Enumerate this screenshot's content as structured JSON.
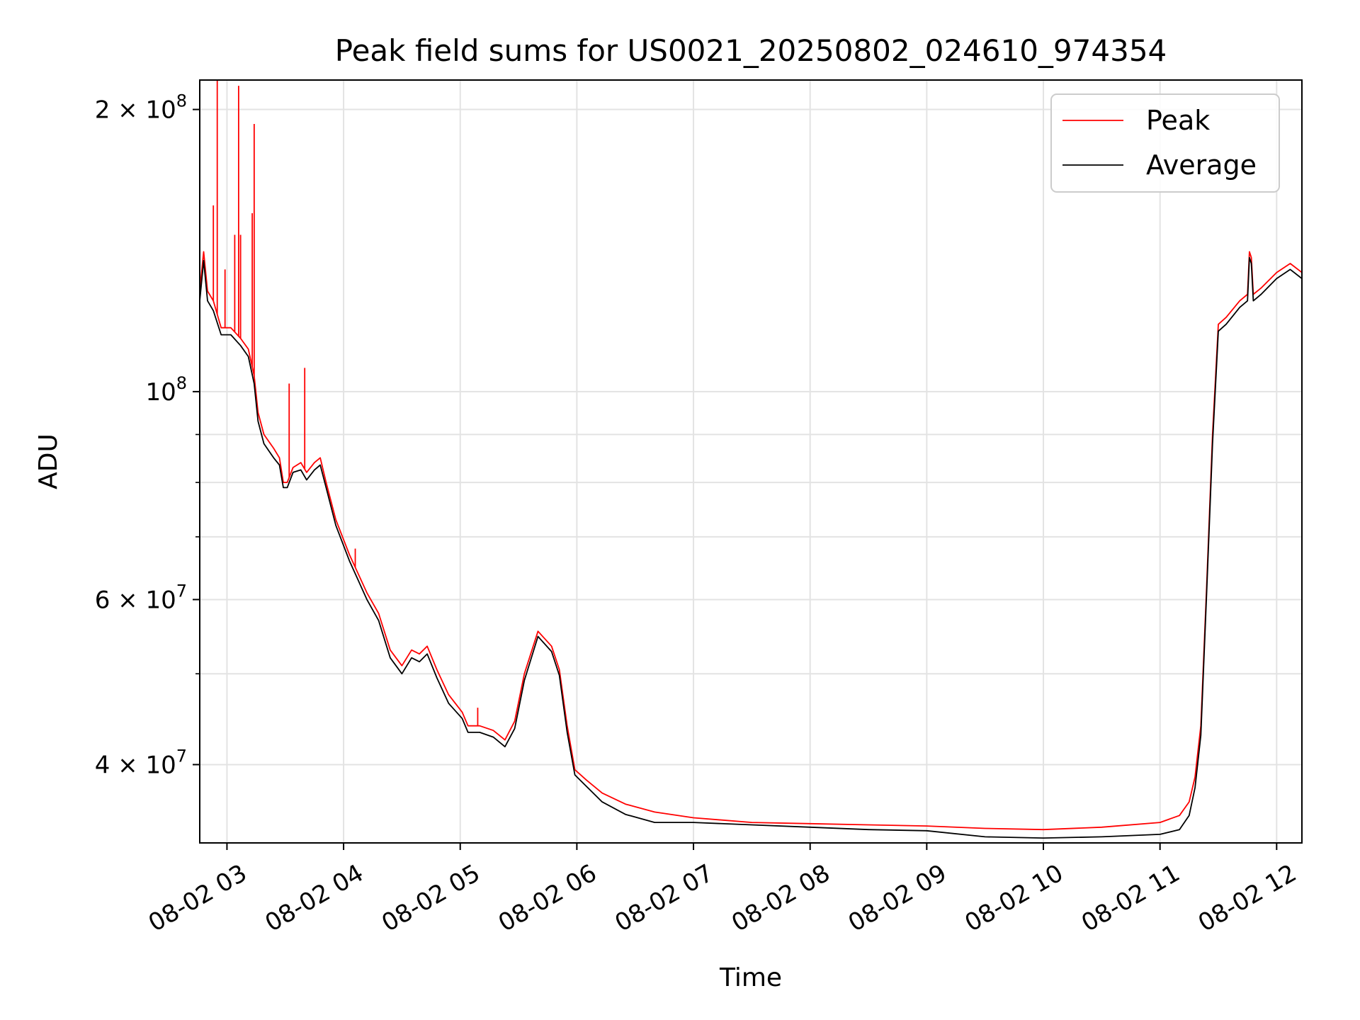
{
  "chart_data": {
    "type": "line",
    "title": "Peak field sums for US0021_20250802_024610_974354",
    "xlabel": "Time",
    "ylabel": "ADU",
    "yscale": "log",
    "ylim": [
      33000000,
      215000000
    ],
    "xlim": [
      "2025-08-02 02:46",
      "2025-08-02 12:13"
    ],
    "grid": true,
    "legend_position": "top-right",
    "x_ticks": [
      {
        "t": "2025-08-02 03:00",
        "label": "08-02 03"
      },
      {
        "t": "2025-08-02 04:00",
        "label": "08-02 04"
      },
      {
        "t": "2025-08-02 05:00",
        "label": "08-02 05"
      },
      {
        "t": "2025-08-02 06:00",
        "label": "08-02 06"
      },
      {
        "t": "2025-08-02 07:00",
        "label": "08-02 07"
      },
      {
        "t": "2025-08-02 08:00",
        "label": "08-02 08"
      },
      {
        "t": "2025-08-02 09:00",
        "label": "08-02 09"
      },
      {
        "t": "2025-08-02 10:00",
        "label": "08-02 10"
      },
      {
        "t": "2025-08-02 11:00",
        "label": "08-02 11"
      },
      {
        "t": "2025-08-02 12:00",
        "label": "08-02 12"
      }
    ],
    "y_major_ticks": [
      {
        "v": 40000000,
        "mantissa": "4",
        "exp": "7"
      },
      {
        "v": 60000000,
        "mantissa": "6",
        "exp": "7"
      },
      {
        "v": 100000000,
        "mantissa": "",
        "exp": "8"
      },
      {
        "v": 200000000,
        "mantissa": "2",
        "exp": "8"
      }
    ],
    "y_minor_ticks": [
      50000000,
      70000000,
      80000000,
      90000000
    ],
    "series": [
      {
        "name": "Peak",
        "color": "#ff0000",
        "points": [
          [
            "2025-08-02 02:46",
            128000000
          ],
          [
            "2025-08-02 02:48",
            141000000
          ],
          [
            "2025-08-02 02:50",
            128000000
          ],
          [
            "2025-08-02 02:53",
            125000000
          ],
          [
            "2025-08-02 02:57",
            117000000
          ],
          [
            "2025-08-02 03:02",
            117000000
          ],
          [
            "2025-08-02 03:07",
            114000000
          ],
          [
            "2025-08-02 03:11",
            111000000
          ],
          [
            "2025-08-02 03:14",
            104000000
          ],
          [
            "2025-08-02 03:16",
            95000000
          ],
          [
            "2025-08-02 03:19",
            90000000
          ],
          [
            "2025-08-02 03:24",
            87000000
          ],
          [
            "2025-08-02 03:27",
            85000000
          ],
          [
            "2025-08-02 03:29",
            80000000
          ],
          [
            "2025-08-02 03:31",
            80000000
          ],
          [
            "2025-08-02 03:34",
            83000000
          ],
          [
            "2025-08-02 03:38",
            84000000
          ],
          [
            "2025-08-02 03:41",
            82000000
          ],
          [
            "2025-08-02 03:45",
            84000000
          ],
          [
            "2025-08-02 03:48",
            85000000
          ],
          [
            "2025-08-02 03:51",
            80000000
          ],
          [
            "2025-08-02 03:56",
            73000000
          ],
          [
            "2025-08-02 04:03",
            67000000
          ],
          [
            "2025-08-02 04:12",
            61000000
          ],
          [
            "2025-08-02 04:18",
            58000000
          ],
          [
            "2025-08-02 04:24",
            53000000
          ],
          [
            "2025-08-02 04:30",
            51000000
          ],
          [
            "2025-08-02 04:35",
            53000000
          ],
          [
            "2025-08-02 04:39",
            52500000
          ],
          [
            "2025-08-02 04:43",
            53500000
          ],
          [
            "2025-08-02 04:48",
            50500000
          ],
          [
            "2025-08-02 04:54",
            47500000
          ],
          [
            "2025-08-02 05:01",
            45500000
          ],
          [
            "2025-08-02 05:04",
            44000000
          ],
          [
            "2025-08-02 05:10",
            44000000
          ],
          [
            "2025-08-02 05:17",
            43500000
          ],
          [
            "2025-08-02 05:23",
            42500000
          ],
          [
            "2025-08-02 05:28",
            44500000
          ],
          [
            "2025-08-02 05:33",
            50000000
          ],
          [
            "2025-08-02 05:40",
            55500000
          ],
          [
            "2025-08-02 05:47",
            53500000
          ],
          [
            "2025-08-02 05:51",
            50500000
          ],
          [
            "2025-08-02 05:55",
            44000000
          ],
          [
            "2025-08-02 05:59",
            39500000
          ],
          [
            "2025-08-02 06:05",
            38500000
          ],
          [
            "2025-08-02 06:13",
            37300000
          ],
          [
            "2025-08-02 06:25",
            36300000
          ],
          [
            "2025-08-02 06:40",
            35600000
          ],
          [
            "2025-08-02 07:00",
            35100000
          ],
          [
            "2025-08-02 07:30",
            34700000
          ],
          [
            "2025-08-02 08:00",
            34600000
          ],
          [
            "2025-08-02 08:30",
            34500000
          ],
          [
            "2025-08-02 09:00",
            34400000
          ],
          [
            "2025-08-02 09:30",
            34200000
          ],
          [
            "2025-08-02 10:00",
            34100000
          ],
          [
            "2025-08-02 10:30",
            34300000
          ],
          [
            "2025-08-02 11:00",
            34700000
          ],
          [
            "2025-08-02 11:10",
            35300000
          ],
          [
            "2025-08-02 11:15",
            36500000
          ],
          [
            "2025-08-02 11:18",
            38800000
          ],
          [
            "2025-08-02 11:21",
            44000000
          ],
          [
            "2025-08-02 11:24",
            62000000
          ],
          [
            "2025-08-02 11:27",
            90000000
          ],
          [
            "2025-08-02 11:30",
            118000000
          ],
          [
            "2025-08-02 11:34",
            120000000
          ],
          [
            "2025-08-02 11:41",
            125000000
          ],
          [
            "2025-08-02 11:45",
            127000000
          ],
          [
            "2025-08-02 11:46",
            141000000
          ],
          [
            "2025-08-02 11:47",
            139000000
          ],
          [
            "2025-08-02 11:48",
            127000000
          ],
          [
            "2025-08-02 11:52",
            129000000
          ],
          [
            "2025-08-02 12:00",
            134000000
          ],
          [
            "2025-08-02 12:07",
            137000000
          ],
          [
            "2025-08-02 12:13",
            134000000
          ]
        ],
        "spikes": [
          [
            "2025-08-02 02:53",
            158000000
          ],
          [
            "2025-08-02 02:55",
            215000000
          ],
          [
            "2025-08-02 02:59",
            135000000
          ],
          [
            "2025-08-02 03:04",
            147000000
          ],
          [
            "2025-08-02 03:06",
            212000000
          ],
          [
            "2025-08-02 03:07",
            147000000
          ],
          [
            "2025-08-02 03:13",
            155000000
          ],
          [
            "2025-08-02 03:14",
            193000000
          ],
          [
            "2025-08-02 03:32",
            102000000
          ],
          [
            "2025-08-02 03:40",
            106000000
          ],
          [
            "2025-08-02 04:06",
            68000000
          ],
          [
            "2025-08-02 05:09",
            46000000
          ]
        ]
      },
      {
        "name": "Average",
        "color": "#000000",
        "points": [
          [
            "2025-08-02 02:46",
            125000000
          ],
          [
            "2025-08-02 02:48",
            138000000
          ],
          [
            "2025-08-02 02:50",
            125000000
          ],
          [
            "2025-08-02 02:53",
            122000000
          ],
          [
            "2025-08-02 02:57",
            115000000
          ],
          [
            "2025-08-02 03:02",
            115000000
          ],
          [
            "2025-08-02 03:07",
            112000000
          ],
          [
            "2025-08-02 03:11",
            109000000
          ],
          [
            "2025-08-02 03:14",
            102000000
          ],
          [
            "2025-08-02 03:16",
            93000000
          ],
          [
            "2025-08-02 03:19",
            88000000
          ],
          [
            "2025-08-02 03:24",
            85000000
          ],
          [
            "2025-08-02 03:27",
            83500000
          ],
          [
            "2025-08-02 03:29",
            79000000
          ],
          [
            "2025-08-02 03:31",
            79000000
          ],
          [
            "2025-08-02 03:34",
            82000000
          ],
          [
            "2025-08-02 03:38",
            82500000
          ],
          [
            "2025-08-02 03:41",
            80500000
          ],
          [
            "2025-08-02 03:45",
            82500000
          ],
          [
            "2025-08-02 03:48",
            83500000
          ],
          [
            "2025-08-02 03:51",
            79000000
          ],
          [
            "2025-08-02 03:56",
            72000000
          ],
          [
            "2025-08-02 04:03",
            66000000
          ],
          [
            "2025-08-02 04:12",
            60000000
          ],
          [
            "2025-08-02 04:18",
            57000000
          ],
          [
            "2025-08-02 04:24",
            52000000
          ],
          [
            "2025-08-02 04:30",
            50000000
          ],
          [
            "2025-08-02 04:35",
            52000000
          ],
          [
            "2025-08-02 04:39",
            51500000
          ],
          [
            "2025-08-02 04:43",
            52500000
          ],
          [
            "2025-08-02 04:48",
            49500000
          ],
          [
            "2025-08-02 04:54",
            46500000
          ],
          [
            "2025-08-02 05:01",
            44800000
          ],
          [
            "2025-08-02 05:04",
            43300000
          ],
          [
            "2025-08-02 05:10",
            43300000
          ],
          [
            "2025-08-02 05:17",
            42800000
          ],
          [
            "2025-08-02 05:23",
            41800000
          ],
          [
            "2025-08-02 05:28",
            43700000
          ],
          [
            "2025-08-02 05:33",
            49200000
          ],
          [
            "2025-08-02 05:40",
            54800000
          ],
          [
            "2025-08-02 05:47",
            52800000
          ],
          [
            "2025-08-02 05:51",
            49800000
          ],
          [
            "2025-08-02 05:55",
            43300000
          ],
          [
            "2025-08-02 05:59",
            39000000
          ],
          [
            "2025-08-02 06:05",
            37900000
          ],
          [
            "2025-08-02 06:13",
            36500000
          ],
          [
            "2025-08-02 06:25",
            35400000
          ],
          [
            "2025-08-02 06:40",
            34700000
          ],
          [
            "2025-08-02 07:00",
            34700000
          ],
          [
            "2025-08-02 07:30",
            34500000
          ],
          [
            "2025-08-02 08:00",
            34300000
          ],
          [
            "2025-08-02 08:30",
            34100000
          ],
          [
            "2025-08-02 09:00",
            34000000
          ],
          [
            "2025-08-02 09:30",
            33500000
          ],
          [
            "2025-08-02 10:00",
            33400000
          ],
          [
            "2025-08-02 10:30",
            33500000
          ],
          [
            "2025-08-02 11:00",
            33700000
          ],
          [
            "2025-08-02 11:10",
            34100000
          ],
          [
            "2025-08-02 11:15",
            35300000
          ],
          [
            "2025-08-02 11:18",
            37800000
          ],
          [
            "2025-08-02 11:21",
            43000000
          ],
          [
            "2025-08-02 11:24",
            61000000
          ],
          [
            "2025-08-02 11:27",
            88000000
          ],
          [
            "2025-08-02 11:30",
            116000000
          ],
          [
            "2025-08-02 11:34",
            118000000
          ],
          [
            "2025-08-02 11:41",
            123000000
          ],
          [
            "2025-08-02 11:45",
            125000000
          ],
          [
            "2025-08-02 11:46",
            139000000
          ],
          [
            "2025-08-02 11:47",
            137000000
          ],
          [
            "2025-08-02 11:48",
            125000000
          ],
          [
            "2025-08-02 11:52",
            127000000
          ],
          [
            "2025-08-02 12:00",
            132000000
          ],
          [
            "2025-08-02 12:07",
            135000000
          ],
          [
            "2025-08-02 12:13",
            132000000
          ]
        ]
      }
    ]
  }
}
